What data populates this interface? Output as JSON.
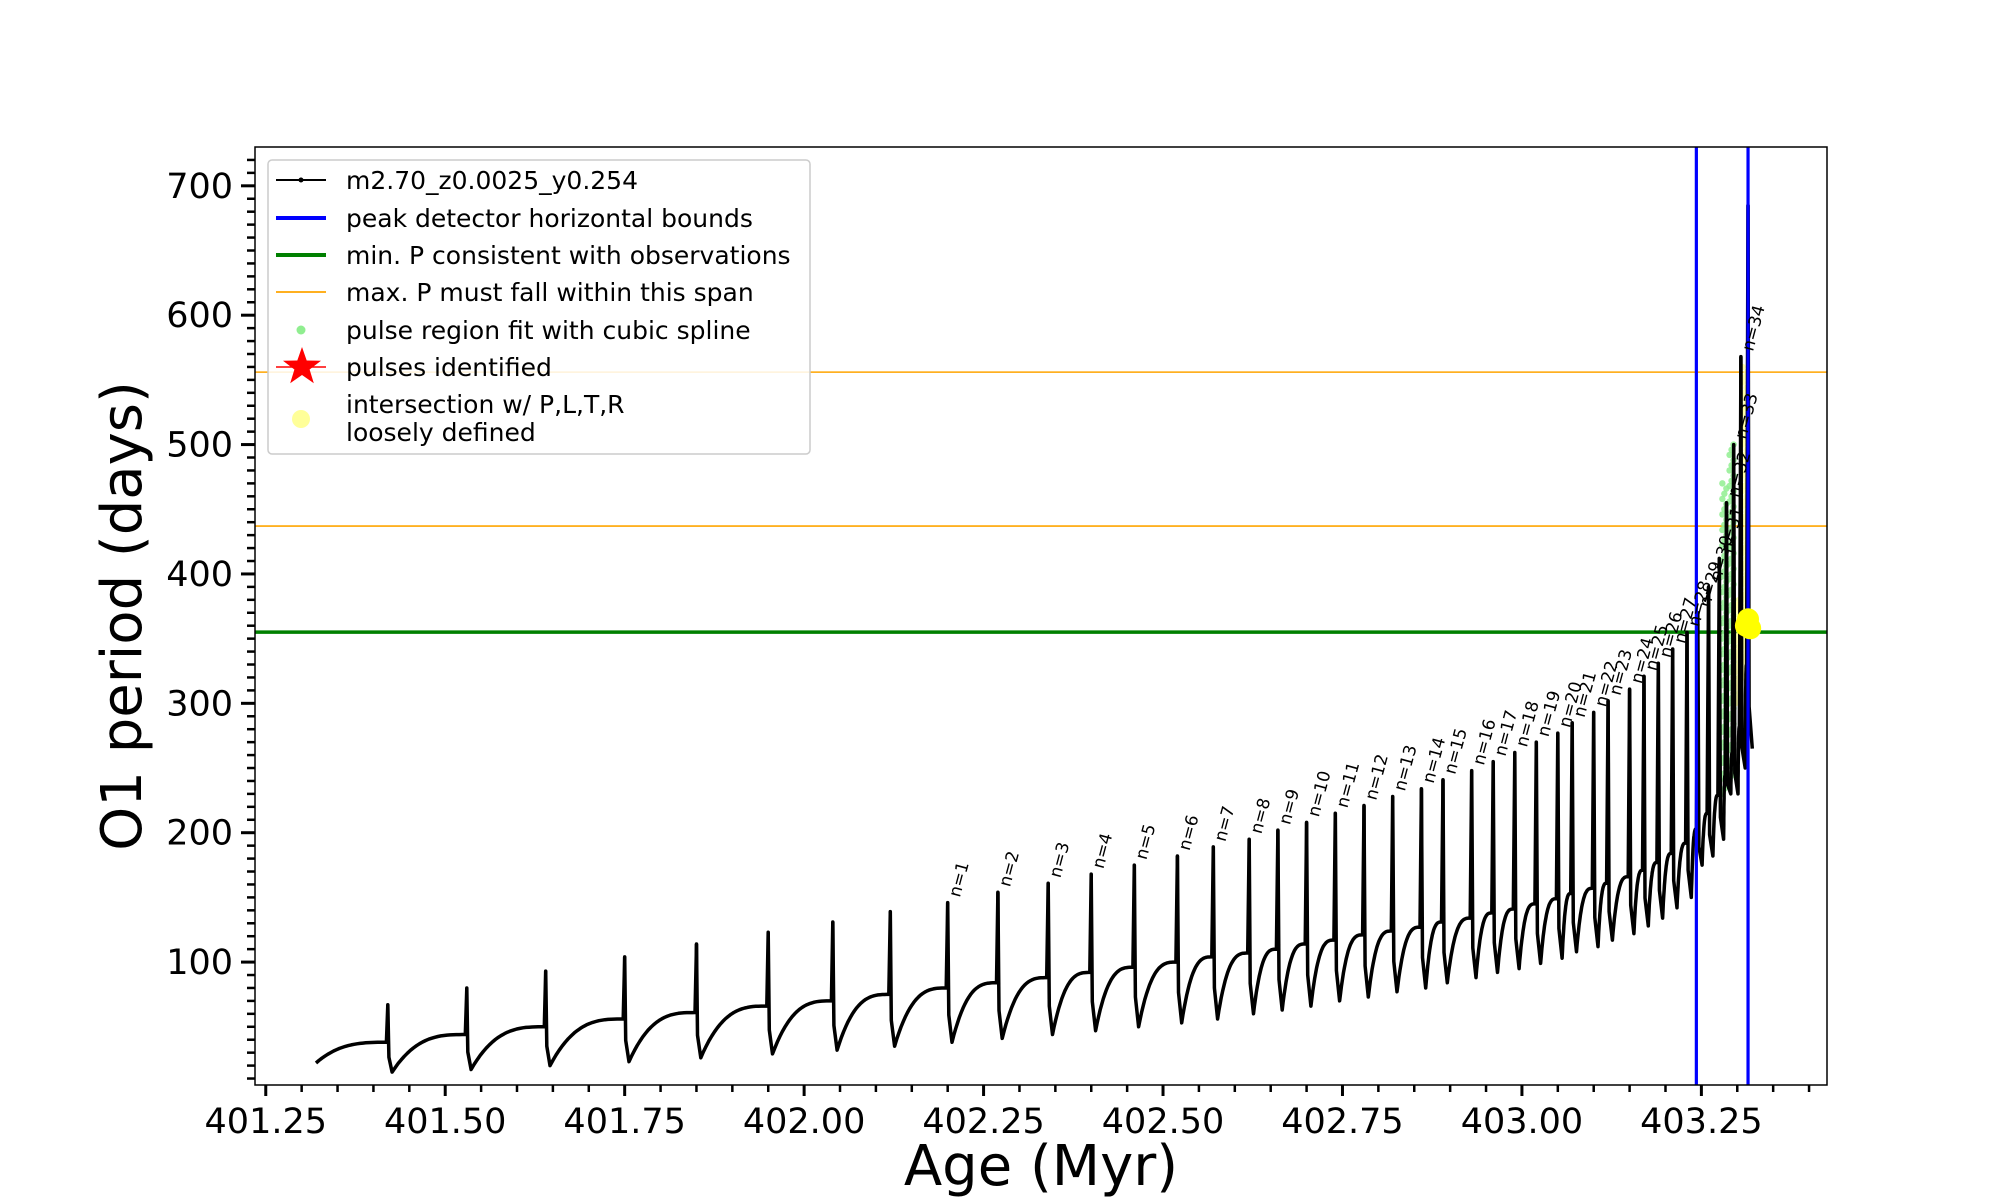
{
  "chart_data": {
    "type": "line",
    "title": "",
    "xlabel": "Age (Myr)",
    "ylabel": "O1 period (days)",
    "xlim": [
      401.235,
      403.425
    ],
    "ylim": [
      5,
      730
    ],
    "xticks": [
      401.25,
      401.5,
      401.75,
      402.0,
      402.25,
      402.5,
      402.75,
      403.0,
      403.25
    ],
    "xtick_labels": [
      "401.25",
      "401.50",
      "401.75",
      "402.00",
      "402.25",
      "402.50",
      "402.75",
      "403.00",
      "403.25"
    ],
    "yticks": [
      100,
      200,
      300,
      400,
      500,
      600,
      700
    ],
    "ytick_labels": [
      "100",
      "200",
      "300",
      "400",
      "500",
      "600",
      "700"
    ],
    "grid": false,
    "legend_position": "top-left",
    "legend": [
      {
        "label": "m2.70_z0.0025_y0.254",
        "kind": "line-marker",
        "color": "#000000"
      },
      {
        "label": "peak detector horizontal bounds",
        "kind": "line",
        "color": "#0000ff"
      },
      {
        "label": "min. P consistent with observations",
        "kind": "line",
        "color": "#008000"
      },
      {
        "label": "max. P must fall within this span",
        "kind": "line",
        "color": "#ffa500"
      },
      {
        "label": "pulse region fit with cubic spline",
        "kind": "dot",
        "color": "#90ee90"
      },
      {
        "label": "pulses identified",
        "kind": "star",
        "color": "#ff0000"
      },
      {
        "label": "intersection w/ P,L,T,R",
        "label2": "loosely defined",
        "kind": "dot",
        "color": "#ffff99"
      }
    ],
    "vertical_lines": [
      {
        "x": 403.243,
        "color": "#0000ff"
      },
      {
        "x": 403.315,
        "color": "#0000ff"
      }
    ],
    "horizontal_lines": [
      {
        "y": 355,
        "color": "#008000"
      },
      {
        "y": 437,
        "color": "#ffa500"
      },
      {
        "y": 556,
        "color": "#ffa500"
      }
    ],
    "series": [
      {
        "name": "m2.70_z0.0025_y0.254",
        "color": "#000000",
        "start_x": 401.32,
        "start_y": 22,
        "pulses": [
          {
            "x": 401.42,
            "pre": 38,
            "peak": 67,
            "min": 15
          },
          {
            "x": 401.53,
            "pre": 44,
            "peak": 80,
            "min": 17
          },
          {
            "x": 401.64,
            "pre": 50,
            "peak": 93,
            "min": 20
          },
          {
            "x": 401.75,
            "pre": 56,
            "peak": 104,
            "min": 23
          },
          {
            "x": 401.85,
            "pre": 61,
            "peak": 114,
            "min": 26
          },
          {
            "x": 401.95,
            "pre": 66,
            "peak": 123,
            "min": 29
          },
          {
            "x": 402.04,
            "pre": 70,
            "peak": 131,
            "min": 32
          },
          {
            "x": 402.12,
            "pre": 75,
            "peak": 139,
            "min": 35
          },
          {
            "x": 402.2,
            "pre": 80,
            "peak": 146,
            "min": 38
          },
          {
            "x": 402.27,
            "pre": 84,
            "peak": 154,
            "min": 41
          },
          {
            "x": 402.34,
            "pre": 88,
            "peak": 161,
            "min": 44
          },
          {
            "x": 402.4,
            "pre": 92,
            "peak": 168,
            "min": 47
          },
          {
            "x": 402.46,
            "pre": 96,
            "peak": 175,
            "min": 50
          },
          {
            "x": 402.52,
            "pre": 100,
            "peak": 182,
            "min": 53
          },
          {
            "x": 402.57,
            "pre": 104,
            "peak": 189,
            "min": 56
          },
          {
            "x": 402.62,
            "pre": 107,
            "peak": 195,
            "min": 60
          },
          {
            "x": 402.66,
            "pre": 110,
            "peak": 202,
            "min": 63
          },
          {
            "x": 402.7,
            "pre": 114,
            "peak": 208,
            "min": 66
          },
          {
            "x": 402.74,
            "pre": 117,
            "peak": 215,
            "min": 70
          },
          {
            "x": 402.78,
            "pre": 121,
            "peak": 221,
            "min": 73
          },
          {
            "x": 402.82,
            "pre": 124,
            "peak": 228,
            "min": 77
          },
          {
            "x": 402.86,
            "pre": 127,
            "peak": 234,
            "min": 80
          },
          {
            "x": 402.89,
            "pre": 131,
            "peak": 241,
            "min": 84
          },
          {
            "x": 402.93,
            "pre": 134,
            "peak": 248,
            "min": 88
          },
          {
            "x": 402.96,
            "pre": 138,
            "peak": 255,
            "min": 92
          },
          {
            "x": 402.99,
            "pre": 141,
            "peak": 262,
            "min": 95
          },
          {
            "x": 403.02,
            "pre": 145,
            "peak": 270,
            "min": 99
          },
          {
            "x": 403.05,
            "pre": 149,
            "peak": 277,
            "min": 103
          },
          {
            "x": 403.07,
            "pre": 153,
            "peak": 285,
            "min": 108
          },
          {
            "x": 403.1,
            "pre": 157,
            "peak": 293,
            "min": 112
          },
          {
            "x": 403.12,
            "pre": 161,
            "peak": 302,
            "min": 117
          },
          {
            "x": 403.15,
            "pre": 166,
            "peak": 311,
            "min": 122
          },
          {
            "x": 403.17,
            "pre": 171,
            "peak": 321,
            "min": 128
          },
          {
            "x": 403.19,
            "pre": 177,
            "peak": 331,
            "min": 134
          },
          {
            "x": 403.21,
            "pre": 184,
            "peak": 342,
            "min": 142
          },
          {
            "x": 403.23,
            "pre": 192,
            "peak": 355,
            "min": 150
          },
          {
            "x": 403.245,
            "pre": 203,
            "peak": 370,
            "min": 175
          },
          {
            "x": 403.26,
            "pre": 215,
            "peak": 390,
            "min": 182
          },
          {
            "x": 403.275,
            "pre": 229,
            "peak": 412,
            "min": 195
          },
          {
            "x": 403.285,
            "pre": 244,
            "peak": 455,
            "min": 230
          },
          {
            "x": 403.295,
            "pre": 262,
            "peak": 500,
            "min": 230
          },
          {
            "x": 403.305,
            "pre": 282,
            "peak": 568,
            "min": 250
          },
          {
            "x": 403.315,
            "pre": 330,
            "peak": 685,
            "min": 265
          }
        ]
      }
    ],
    "pulse_labels": [
      {
        "text": "n=1",
        "x": 402.2,
        "y": 148
      },
      {
        "text": "n=2",
        "x": 402.27,
        "y": 156
      },
      {
        "text": "n=3",
        "x": 402.34,
        "y": 163
      },
      {
        "text": "n=4",
        "x": 402.4,
        "y": 170
      },
      {
        "text": "n=5",
        "x": 402.46,
        "y": 177
      },
      {
        "text": "n=6",
        "x": 402.52,
        "y": 184
      },
      {
        "text": "n=7",
        "x": 402.57,
        "y": 191
      },
      {
        "text": "n=8",
        "x": 402.62,
        "y": 197
      },
      {
        "text": "n=9",
        "x": 402.66,
        "y": 204
      },
      {
        "text": "n=10",
        "x": 402.7,
        "y": 210
      },
      {
        "text": "n=11",
        "x": 402.74,
        "y": 217
      },
      {
        "text": "n=12",
        "x": 402.78,
        "y": 223
      },
      {
        "text": "n=13",
        "x": 402.82,
        "y": 230
      },
      {
        "text": "n=14",
        "x": 402.86,
        "y": 236
      },
      {
        "text": "n=15",
        "x": 402.89,
        "y": 243
      },
      {
        "text": "n=16",
        "x": 402.93,
        "y": 250
      },
      {
        "text": "n=17",
        "x": 402.96,
        "y": 257
      },
      {
        "text": "n=18",
        "x": 402.99,
        "y": 264
      },
      {
        "text": "n=19",
        "x": 403.02,
        "y": 272
      },
      {
        "text": "n=20",
        "x": 403.05,
        "y": 279
      },
      {
        "text": "n=21",
        "x": 403.07,
        "y": 287
      },
      {
        "text": "n=22",
        "x": 403.1,
        "y": 295
      },
      {
        "text": "n=23",
        "x": 403.12,
        "y": 304
      },
      {
        "text": "n=24",
        "x": 403.15,
        "y": 313
      },
      {
        "text": "n=25",
        "x": 403.17,
        "y": 323
      },
      {
        "text": "n=26",
        "x": 403.19,
        "y": 333
      },
      {
        "text": "n=27",
        "x": 403.21,
        "y": 344
      },
      {
        "text": "n=28",
        "x": 403.23,
        "y": 357
      },
      {
        "text": "n=29",
        "x": 403.245,
        "y": 372
      },
      {
        "text": "n=30",
        "x": 403.26,
        "y": 392
      },
      {
        "text": "n=31",
        "x": 403.275,
        "y": 414
      },
      {
        "text": "n=32",
        "x": 403.285,
        "y": 457
      },
      {
        "text": "n=33",
        "x": 403.295,
        "y": 502
      },
      {
        "text": "n=34",
        "x": 403.305,
        "y": 570
      }
    ],
    "intersection_points": [
      {
        "x": 403.312,
        "y": 360
      },
      {
        "x": 403.315,
        "y": 365
      },
      {
        "x": 403.318,
        "y": 358
      }
    ],
    "spline_regions": [
      {
        "x": 403.282,
        "y_low": 230,
        "y_high": 470,
        "color": "#90ee90"
      },
      {
        "x": 403.292,
        "y_low": 240,
        "y_high": 500,
        "color": "#90ee90"
      },
      {
        "x": 403.3,
        "y_low": 300,
        "y_high": 380,
        "color": "#ffff99"
      },
      {
        "x": 403.31,
        "y_low": 320,
        "y_high": 560,
        "color": "#ffff99"
      }
    ]
  }
}
